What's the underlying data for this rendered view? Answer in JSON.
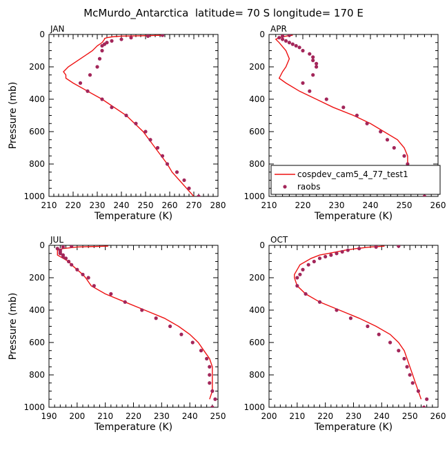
{
  "title": "McMurdo_Antarctica  latitude= 70 S longitude= 170 E",
  "colors": {
    "model": "#ee1111",
    "obs": "#a3265a",
    "axis": "#000000"
  },
  "chart_data": [
    {
      "type": "line",
      "panel_label": "JAN",
      "xlabel": "Temperature (K)",
      "ylabel": "Pressure (mb)",
      "xlim": [
        210,
        280
      ],
      "ylim": [
        1000,
        0
      ],
      "x_ticks": [
        210,
        220,
        230,
        240,
        250,
        260,
        270,
        280
      ],
      "y_ticks": [
        0,
        200,
        400,
        600,
        800,
        1000
      ],
      "legend": null,
      "series": [
        {
          "kind": "line",
          "pressure": [
            5,
            8,
            10,
            15,
            20,
            25,
            30,
            50,
            70,
            100,
            150,
            200,
            230,
            250,
            270,
            300,
            350,
            400,
            500,
            600,
            700,
            800,
            850,
            900,
            950,
            1000
          ],
          "temperature": [
            257,
            248,
            240,
            236,
            234,
            233,
            233,
            232,
            230,
            228,
            223,
            218,
            216,
            217,
            217,
            220,
            226,
            232,
            242,
            249,
            254,
            259,
            261,
            264,
            267,
            270
          ]
        },
        {
          "kind": "scatter",
          "pressure": [
            5,
            10,
            20,
            30,
            40,
            50,
            60,
            70,
            100,
            150,
            200,
            250,
            300,
            350,
            400,
            450,
            500,
            550,
            600,
            650,
            700,
            750,
            800,
            850,
            900,
            950,
            1000
          ],
          "temperature": [
            257,
            251,
            244,
            240,
            236,
            234,
            233,
            232,
            232,
            231,
            230,
            227,
            223,
            226,
            232,
            236,
            242,
            246,
            250,
            252,
            255,
            257,
            259,
            263,
            266,
            268,
            272
          ]
        }
      ]
    },
    {
      "type": "line",
      "panel_label": "APR",
      "xlabel": "Temperature (K)",
      "ylabel": "",
      "xlim": [
        210,
        260
      ],
      "ylim": [
        1000,
        0
      ],
      "x_ticks": [
        210,
        220,
        230,
        240,
        250,
        260
      ],
      "y_ticks": [
        0,
        200,
        400,
        600,
        800,
        1000
      ],
      "legend": [
        "cospdev_cam5_4_77_test1",
        "raobs"
      ],
      "series": [
        {
          "name": "cospdev_cam5_4_77_test1",
          "kind": "line",
          "pressure": [
            5,
            10,
            20,
            30,
            50,
            100,
            150,
            200,
            230,
            270,
            300,
            350,
            400,
            450,
            500,
            550,
            600,
            650,
            700,
            750,
            800,
            850,
            900,
            950
          ],
          "temperature": [
            217,
            215,
            213,
            212,
            213,
            215,
            216,
            215,
            214,
            213,
            215,
            219,
            224,
            229,
            235,
            240,
            244,
            248,
            250,
            251,
            251,
            252,
            253,
            256
          ]
        },
        {
          "name": "raobs",
          "kind": "scatter",
          "pressure": [
            5,
            10,
            20,
            30,
            40,
            50,
            60,
            70,
            80,
            100,
            120,
            140,
            160,
            180,
            200,
            250,
            300,
            350,
            400,
            450,
            500,
            550,
            600,
            650,
            700,
            750,
            800,
            850,
            900,
            950,
            1000
          ],
          "temperature": [
            216,
            214,
            213,
            214,
            215,
            216,
            217,
            218,
            219,
            220,
            222,
            223,
            223,
            224,
            224,
            223,
            220,
            222,
            227,
            232,
            236,
            239,
            243,
            245,
            247,
            250,
            251,
            252,
            253,
            255,
            256
          ]
        }
      ]
    },
    {
      "type": "line",
      "panel_label": "JUL",
      "xlabel": "Temperature (K)",
      "ylabel": "Pressure (mb)",
      "xlim": [
        190,
        250
      ],
      "ylim": [
        1000,
        0
      ],
      "x_ticks": [
        190,
        200,
        210,
        220,
        230,
        240,
        250
      ],
      "y_ticks": [
        0,
        200,
        400,
        600,
        800,
        1000
      ],
      "legend": null,
      "series": [
        {
          "kind": "line",
          "pressure": [
            5,
            10,
            20,
            30,
            40,
            50,
            60,
            80,
            100,
            120,
            150,
            180,
            200,
            250,
            300,
            350,
            400,
            450,
            500,
            550,
            600,
            650,
            700,
            750,
            800,
            850,
            900,
            950
          ],
          "temperature": [
            211,
            200,
            195,
            193,
            193,
            193,
            193,
            195,
            197,
            198,
            200,
            202,
            203,
            205,
            210,
            217,
            224,
            231,
            236,
            240,
            243,
            245,
            247,
            248,
            248,
            248,
            248,
            247
          ]
        },
        {
          "kind": "scatter",
          "pressure": [
            5,
            10,
            20,
            30,
            40,
            50,
            60,
            70,
            80,
            100,
            120,
            150,
            180,
            200,
            250,
            300,
            350,
            400,
            450,
            500,
            550,
            600,
            650,
            700,
            750,
            800,
            850,
            900,
            950,
            1000
          ],
          "temperature": [
            198,
            195,
            193,
            194,
            194,
            194,
            195,
            195,
            196,
            197,
            198,
            200,
            202,
            204,
            206,
            212,
            217,
            223,
            228,
            233,
            237,
            241,
            244,
            246,
            247,
            247,
            247,
            248,
            249,
            248
          ]
        }
      ]
    },
    {
      "type": "line",
      "panel_label": "OCT",
      "xlabel": "Temperature (K)",
      "ylabel": "",
      "xlim": [
        200,
        260
      ],
      "ylim": [
        1000,
        0
      ],
      "x_ticks": [
        200,
        210,
        220,
        230,
        240,
        250,
        260
      ],
      "y_ticks": [
        0,
        200,
        400,
        600,
        800,
        1000
      ],
      "legend": null,
      "series": [
        {
          "kind": "line",
          "pressure": [
            5,
            10,
            20,
            30,
            40,
            50,
            60,
            80,
            100,
            120,
            150,
            180,
            200,
            250,
            300,
            350,
            400,
            450,
            500,
            550,
            600,
            650,
            700,
            750,
            800,
            850,
            900,
            950
          ],
          "temperature": [
            241,
            236,
            231,
            227,
            224,
            221,
            218,
            215,
            213,
            211,
            210,
            209,
            209,
            210,
            213,
            218,
            225,
            232,
            238,
            243,
            246,
            248,
            249,
            250,
            251,
            252,
            253,
            254
          ]
        },
        {
          "kind": "scatter",
          "pressure": [
            5,
            10,
            20,
            30,
            40,
            50,
            60,
            70,
            80,
            100,
            120,
            150,
            180,
            200,
            250,
            300,
            350,
            400,
            450,
            500,
            550,
            600,
            650,
            700,
            750,
            800,
            850,
            900,
            950,
            1000
          ],
          "temperature": [
            246,
            238,
            232,
            228,
            226,
            224,
            222,
            220,
            218,
            216,
            214,
            212,
            211,
            210,
            210,
            213,
            218,
            224,
            229,
            235,
            239,
            243,
            246,
            248,
            249,
            250,
            251,
            253,
            256,
            255
          ]
        }
      ]
    }
  ]
}
